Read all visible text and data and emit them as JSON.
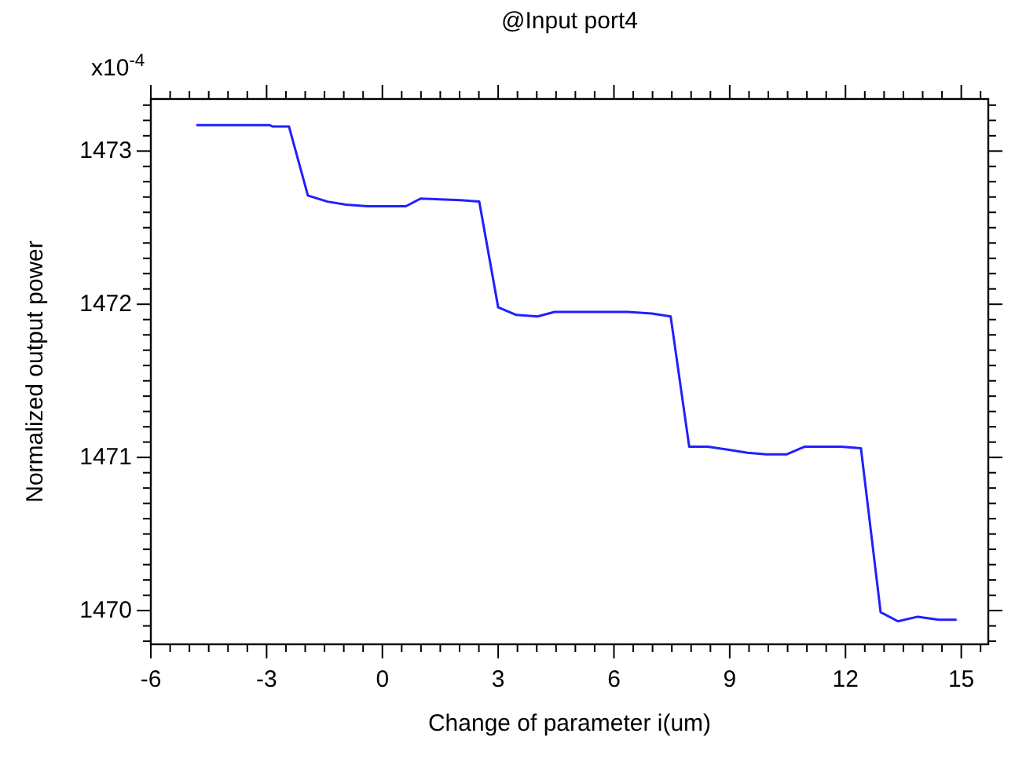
{
  "chart_data": {
    "type": "line",
    "title": "@Input port4",
    "xlabel": "Change of parameter i(um)",
    "ylabel": "Normalized output power",
    "annotations": [
      "x10$^{-4}$"
    ],
    "x": [
      -4.82,
      -4.38,
      -2.93,
      -2.84,
      -2.42,
      -1.93,
      -1.42,
      -0.94,
      -0.38,
      0.61,
      0.99,
      2.02,
      2.51,
      3.0,
      3.47,
      4.02,
      4.46,
      5.12,
      6.36,
      6.98,
      7.47,
      7.95,
      8.43,
      8.98,
      9.46,
      9.95,
      10.47,
      10.94,
      11.88,
      12.4,
      12.91,
      13.36,
      13.87,
      14.42,
      14.88
    ],
    "series": [
      {
        "color": "#2020ff",
        "values": [
          1473.17,
          1473.17,
          1473.17,
          1473.16,
          1473.16,
          1472.71,
          1472.67,
          1472.65,
          1472.64,
          1472.64,
          1472.69,
          1472.68,
          1472.67,
          1471.98,
          1471.93,
          1471.92,
          1471.95,
          1471.95,
          1471.95,
          1471.94,
          1471.92,
          1471.07,
          1471.07,
          1471.05,
          1471.03,
          1471.02,
          1471.02,
          1471.07,
          1471.07,
          1471.06,
          1469.99,
          1469.93,
          1469.96,
          1469.94,
          1469.94
        ]
      }
    ],
    "xlim": [
      -6,
      15.7
    ],
    "ylim": [
      1469.78,
      1473.34
    ],
    "xticks": [
      -6,
      {
        "value": -5.5,
        "label": null
      },
      {
        "value": -5,
        "label": null
      },
      {
        "value": -4.5,
        "label": null
      },
      {
        "value": -4,
        "label": null
      },
      {
        "value": -3.5,
        "label": null
      },
      -3,
      {
        "value": -2.5,
        "label": null
      },
      {
        "value": -2,
        "label": null
      },
      {
        "value": -1.5,
        "label": null
      },
      {
        "value": -1,
        "label": null
      },
      {
        "value": -0.5,
        "label": null
      },
      0,
      {
        "value": 0.5,
        "label": null
      },
      {
        "value": 1,
        "label": null
      },
      {
        "value": 1.5,
        "label": null
      },
      {
        "value": 2,
        "label": null
      },
      {
        "value": 2.5,
        "label": null
      },
      3,
      {
        "value": 3.5,
        "label": null
      },
      {
        "value": 4,
        "label": null
      },
      {
        "value": 4.5,
        "label": null
      },
      {
        "value": 5,
        "label": null
      },
      {
        "value": 5.5,
        "label": null
      },
      6,
      {
        "value": 6.5,
        "label": null
      },
      {
        "value": 7,
        "label": null
      },
      {
        "value": 7.5,
        "label": null
      },
      {
        "value": 8,
        "label": null
      },
      {
        "value": 8.5,
        "label": null
      },
      9,
      {
        "value": 9.5,
        "label": null
      },
      {
        "value": 10,
        "label": null
      },
      {
        "value": 10.5,
        "label": null
      },
      {
        "value": 11,
        "label": null
      },
      {
        "value": 11.5,
        "label": null
      },
      12,
      {
        "value": 12.5,
        "label": null
      },
      {
        "value": 13,
        "label": null
      },
      {
        "value": 13.5,
        "label": null
      },
      {
        "value": 14,
        "label": null
      },
      {
        "value": 14.5,
        "label": null
      },
      15,
      {
        "value": 15.5,
        "label": null
      }
    ],
    "yticks": [
      {
        "value": 1469.8,
        "label": null
      },
      {
        "value": 1469.9,
        "label": null
      },
      1470,
      {
        "value": 1470.1,
        "label": null
      },
      {
        "value": 1470.2,
        "label": null
      },
      {
        "value": 1470.3,
        "label": null
      },
      {
        "value": 1470.4,
        "label": null
      },
      {
        "value": 1470.5,
        "label": null
      },
      {
        "value": 1470.6,
        "label": null
      },
      {
        "value": 1470.7,
        "label": null
      },
      {
        "value": 1470.8,
        "label": null
      },
      {
        "value": 1470.9,
        "label": null
      },
      1471,
      {
        "value": 1471.1,
        "label": null
      },
      {
        "value": 1471.2,
        "label": null
      },
      {
        "value": 1471.3,
        "label": null
      },
      {
        "value": 1471.4,
        "label": null
      },
      {
        "value": 1471.5,
        "label": null
      },
      {
        "value": 1471.6,
        "label": null
      },
      {
        "value": 1471.7,
        "label": null
      },
      {
        "value": 1471.8,
        "label": null
      },
      {
        "value": 1471.9,
        "label": null
      },
      1472,
      {
        "value": 1472.1,
        "label": null
      },
      {
        "value": 1472.2,
        "label": null
      },
      {
        "value": 1472.3,
        "label": null
      },
      {
        "value": 1472.4,
        "label": null
      },
      {
        "value": 1472.5,
        "label": null
      },
      {
        "value": 1472.6,
        "label": null
      },
      {
        "value": 1472.7,
        "label": null
      },
      {
        "value": 1472.8,
        "label": null
      },
      {
        "value": 1472.9,
        "label": null
      },
      1473,
      {
        "value": 1473.1,
        "label": null
      },
      {
        "value": 1473.2,
        "label": null
      },
      {
        "value": 1473.3,
        "label": null
      }
    ],
    "grid": false,
    "marker": "none",
    "line_style": "solid"
  }
}
